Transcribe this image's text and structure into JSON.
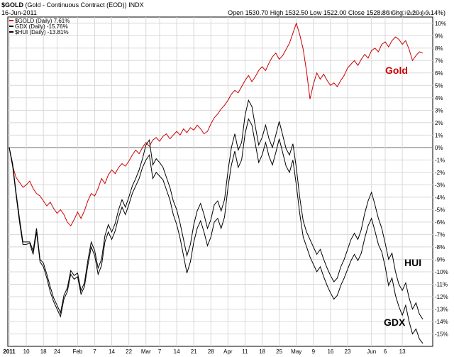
{
  "header": {
    "symbol": "$GOLD",
    "description": "(Gold - Continuous Contract (EOD))  INDX",
    "date": "16-Jun-2011",
    "ohlc": [
      {
        "label": "Open",
        "value": "1530.70"
      },
      {
        "label": "High",
        "value": "1532.50"
      },
      {
        "label": "Low",
        "value": "1522.00"
      },
      {
        "label": "Close",
        "value": "1528.80"
      },
      {
        "label": "Chg",
        "value": "-2.20 (-0.14%)"
      }
    ],
    "watermark": "© StockCharts.com"
  },
  "legend": [
    {
      "name": "$GOLD (Daily) 7.61%",
      "color": "#cc0000"
    },
    {
      "name": "GDX (Daily) -15.76%",
      "color": "#000000"
    },
    {
      "name": "$HUI (Daily) -13.81%",
      "color": "#000000"
    }
  ],
  "annotations": [
    "Gold",
    "HUI",
    "GDX"
  ],
  "chart_data": {
    "type": "line",
    "ylim": [
      -16,
      10.5
    ],
    "y_ticks": [
      -15,
      -14,
      -13,
      -12,
      -11,
      -10,
      -9,
      -8,
      -7,
      -6,
      -5,
      -4,
      -3,
      -2,
      -1,
      0,
      1,
      2,
      3,
      4,
      5,
      6,
      7,
      8,
      9,
      10
    ],
    "y_tick_suffix": "%",
    "grid": true,
    "legend_position": "top-left",
    "x_tick_labels": [
      {
        "label": "2011",
        "index": 0
      },
      {
        "label": "10",
        "index": 5
      },
      {
        "label": "18",
        "index": 10
      },
      {
        "label": "24",
        "index": 14
      },
      {
        "label": "Feb",
        "index": 20
      },
      {
        "label": "7",
        "index": 25
      },
      {
        "label": "14",
        "index": 30
      },
      {
        "label": "22",
        "index": 35
      },
      {
        "label": "Mar",
        "index": 40
      },
      {
        "label": "7",
        "index": 44
      },
      {
        "label": "14",
        "index": 49
      },
      {
        "label": "21",
        "index": 54
      },
      {
        "label": "28",
        "index": 59
      },
      {
        "label": "Apr",
        "index": 64
      },
      {
        "label": "11",
        "index": 69
      },
      {
        "label": "18",
        "index": 74
      },
      {
        "label": "25",
        "index": 79
      },
      {
        "label": "May",
        "index": 84
      },
      {
        "label": "9",
        "index": 89
      },
      {
        "label": "16",
        "index": 94
      },
      {
        "label": "23",
        "index": 99
      },
      {
        "label": "Jun",
        "index": 106
      },
      {
        "label": "6",
        "index": 110
      },
      {
        "label": "13",
        "index": 115
      }
    ],
    "series": [
      {
        "name": "$GOLD (Daily) 7.61%",
        "color": "#cc0000",
        "values": [
          0.0,
          -1.5,
          -2.4,
          -2.8,
          -3.2,
          -3.0,
          -2.7,
          -3.3,
          -3.7,
          -3.9,
          -4.3,
          -4.7,
          -4.4,
          -4.9,
          -5.3,
          -5.0,
          -5.4,
          -6.0,
          -6.3,
          -5.8,
          -5.2,
          -5.7,
          -5.1,
          -4.3,
          -3.7,
          -3.9,
          -3.3,
          -2.5,
          -2.9,
          -2.2,
          -1.8,
          -2.1,
          -1.6,
          -1.3,
          -1.5,
          -1.1,
          -0.6,
          -0.2,
          -0.5,
          0.0,
          0.4,
          0.1,
          0.6,
          0.8,
          0.5,
          0.9,
          1.1,
          0.7,
          1.0,
          1.3,
          1.0,
          1.5,
          1.2,
          1.6,
          1.4,
          1.8,
          1.5,
          1.1,
          1.3,
          1.9,
          2.4,
          2.7,
          3.1,
          3.4,
          3.8,
          4.3,
          4.6,
          4.4,
          4.9,
          5.4,
          5.8,
          5.3,
          5.7,
          6.2,
          6.5,
          6.2,
          6.8,
          7.3,
          7.6,
          7.1,
          7.4,
          7.9,
          8.4,
          9.2,
          10.0,
          9.1,
          7.9,
          6.1,
          3.9,
          5.1,
          6.0,
          5.5,
          5.9,
          5.4,
          5.0,
          5.2,
          4.9,
          5.4,
          5.8,
          6.4,
          6.7,
          7.0,
          6.6,
          7.1,
          7.5,
          7.2,
          7.8,
          8.0,
          7.7,
          8.3,
          8.5,
          8.1,
          8.6,
          8.9,
          8.7,
          8.3,
          8.6,
          7.9,
          7.0,
          7.4,
          7.7,
          7.6
        ]
      },
      {
        "name": "GDX (Daily) -15.76%",
        "color": "#000000",
        "values": [
          0.0,
          -1.5,
          -3.8,
          -6.0,
          -7.8,
          -7.8,
          -7.7,
          -8.6,
          -6.8,
          -9.2,
          -9.6,
          -10.5,
          -11.6,
          -12.4,
          -13.0,
          -13.6,
          -12.2,
          -11.6,
          -10.2,
          -10.6,
          -10.4,
          -11.8,
          -11.2,
          -9.5,
          -8.0,
          -8.7,
          -10.2,
          -9.5,
          -7.6,
          -6.8,
          -7.4,
          -6.7,
          -5.6,
          -4.8,
          -5.4,
          -4.6,
          -3.7,
          -3.1,
          -2.5,
          -1.6,
          -1.0,
          -0.6,
          -2.5,
          -2.0,
          -2.3,
          -2.6,
          -3.4,
          -4.2,
          -5.4,
          -6.2,
          -7.3,
          -8.7,
          -10.1,
          -9.2,
          -7.6,
          -6.5,
          -5.9,
          -6.8,
          -7.9,
          -7.2,
          -6.0,
          -5.7,
          -6.5,
          -5.6,
          -3.2,
          -1.4,
          -0.3,
          -1.6,
          -1.0,
          1.1,
          2.3,
          1.8,
          0.3,
          -1.2,
          -0.6,
          0.4,
          -0.7,
          -1.4,
          -0.4,
          0.7,
          -0.4,
          -1.5,
          -2.0,
          -1.0,
          -3.0,
          -5.3,
          -7.2,
          -8.0,
          -8.8,
          -9.4,
          -10.0,
          -9.6,
          -10.4,
          -11.1,
          -11.7,
          -12.2,
          -11.9,
          -11.1,
          -10.5,
          -9.8,
          -9.1,
          -8.6,
          -9.1,
          -8.5,
          -7.3,
          -6.3,
          -5.7,
          -6.7,
          -7.8,
          -8.4,
          -9.6,
          -11.1,
          -10.5,
          -11.9,
          -12.8,
          -13.5,
          -12.7,
          -14.0,
          -15.0,
          -14.6,
          -15.4,
          -15.76
        ]
      },
      {
        "name": "$HUI (Daily) -13.81%",
        "color": "#000000",
        "values": [
          0.0,
          -1.3,
          -3.6,
          -5.7,
          -7.6,
          -7.6,
          -7.6,
          -8.3,
          -6.5,
          -9.0,
          -9.3,
          -10.2,
          -11.2,
          -12.1,
          -12.7,
          -13.3,
          -11.9,
          -11.3,
          -9.9,
          -10.3,
          -10.1,
          -11.5,
          -10.9,
          -9.1,
          -7.6,
          -8.3,
          -9.7,
          -9.0,
          -7.1,
          -6.2,
          -6.8,
          -6.1,
          -5.0,
          -4.2,
          -4.8,
          -4.0,
          -3.1,
          -2.5,
          -1.8,
          -0.9,
          0.2,
          0.6,
          -1.4,
          -0.9,
          -1.2,
          -1.6,
          -2.4,
          -3.2,
          -4.3,
          -5.0,
          -6.1,
          -7.4,
          -8.7,
          -7.8,
          -6.2,
          -5.1,
          -4.5,
          -5.4,
          -6.5,
          -5.8,
          -4.6,
          -4.3,
          -5.1,
          -4.2,
          -1.9,
          0.0,
          1.1,
          -0.2,
          0.4,
          2.6,
          3.8,
          3.3,
          1.7,
          0.2,
          0.8,
          1.8,
          0.7,
          0.0,
          1.0,
          2.1,
          1.0,
          -0.1,
          -0.6,
          0.3,
          -1.6,
          -4.0,
          -5.9,
          -6.8,
          -7.4,
          -8.0,
          -8.6,
          -8.2,
          -9.0,
          -9.7,
          -10.3,
          -10.8,
          -10.5,
          -9.6,
          -9.0,
          -8.2,
          -7.4,
          -6.9,
          -7.4,
          -6.6,
          -5.3,
          -4.3,
          -3.6,
          -4.6,
          -5.7,
          -6.5,
          -7.7,
          -9.0,
          -8.5,
          -10.0,
          -11.0,
          -11.5,
          -10.9,
          -12.1,
          -13.0,
          -12.5,
          -13.4,
          -13.81
        ]
      }
    ]
  }
}
